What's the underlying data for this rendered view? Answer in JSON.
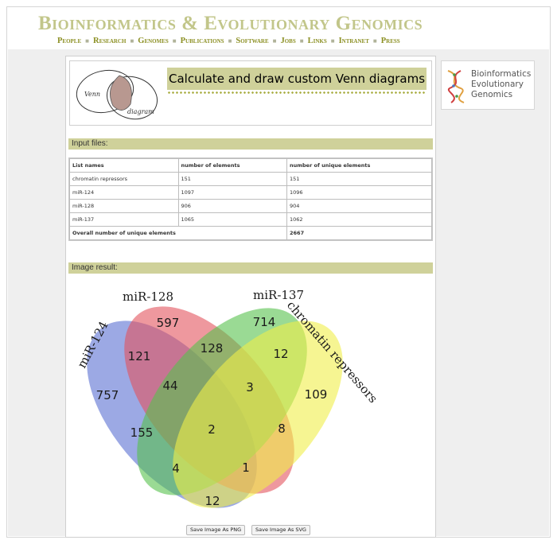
{
  "header": {
    "title_part1": "Bioinformatics",
    "title_amp": "&",
    "title_part2": "Evolutionary Genomics",
    "nav": [
      "People",
      "Research",
      "Genomes",
      "Publications",
      "Software",
      "Jobs",
      "Links",
      "Intranet",
      "Press"
    ]
  },
  "banner": {
    "title": "Calculate and draw custom Venn diagrams",
    "logo_text_top": "Venn",
    "logo_text_bottom": "diagram"
  },
  "side_logo": {
    "lines": [
      "Bioinformatics",
      "Evolutionary",
      "Genomics"
    ]
  },
  "input_files": {
    "section_title": "Input files:",
    "columns": [
      "List names",
      "number of elements",
      "number of unique elements"
    ],
    "rows": [
      {
        "name": "chromatin repressors",
        "elements": "151",
        "unique": "151"
      },
      {
        "name": "miR-124",
        "elements": "1097",
        "unique": "1096"
      },
      {
        "name": "miR-128",
        "elements": "906",
        "unique": "904"
      },
      {
        "name": "miR-137",
        "elements": "1065",
        "unique": "1062"
      }
    ],
    "total_label": "Overall number of unique elements",
    "total_value": "2667"
  },
  "image_result": {
    "section_title": "Image result:",
    "set_labels": {
      "mir124": "miR-124",
      "mir128": "miR-128",
      "mir137": "miR-137",
      "chromatin": "chromatin repressors"
    },
    "colors": {
      "mir124": "#5a6fd2",
      "mir128": "#e2545e",
      "mir137": "#56c24c",
      "chromatin": "#f0ef4a"
    },
    "regions": {
      "mir124_only": "757",
      "mir128_only": "597",
      "mir137_only": "714",
      "chromatin_only": "109",
      "mir124_mir128": "121",
      "mir128_mir137": "128",
      "mir137_chromatin": "12",
      "mir124_mir128_mir137": "44",
      "mir128_mir137_chromatin": "3",
      "mir124_mir137": "155",
      "all_four": "2",
      "mir128_chromatin": "8",
      "mir124_mir137_chromatin": "4",
      "mir124_mir128_chromatin": "1",
      "mir124_chromatin": "12"
    }
  },
  "buttons": {
    "save_png": "Save Image As PNG",
    "save_svg": "Save Image As SVG"
  }
}
